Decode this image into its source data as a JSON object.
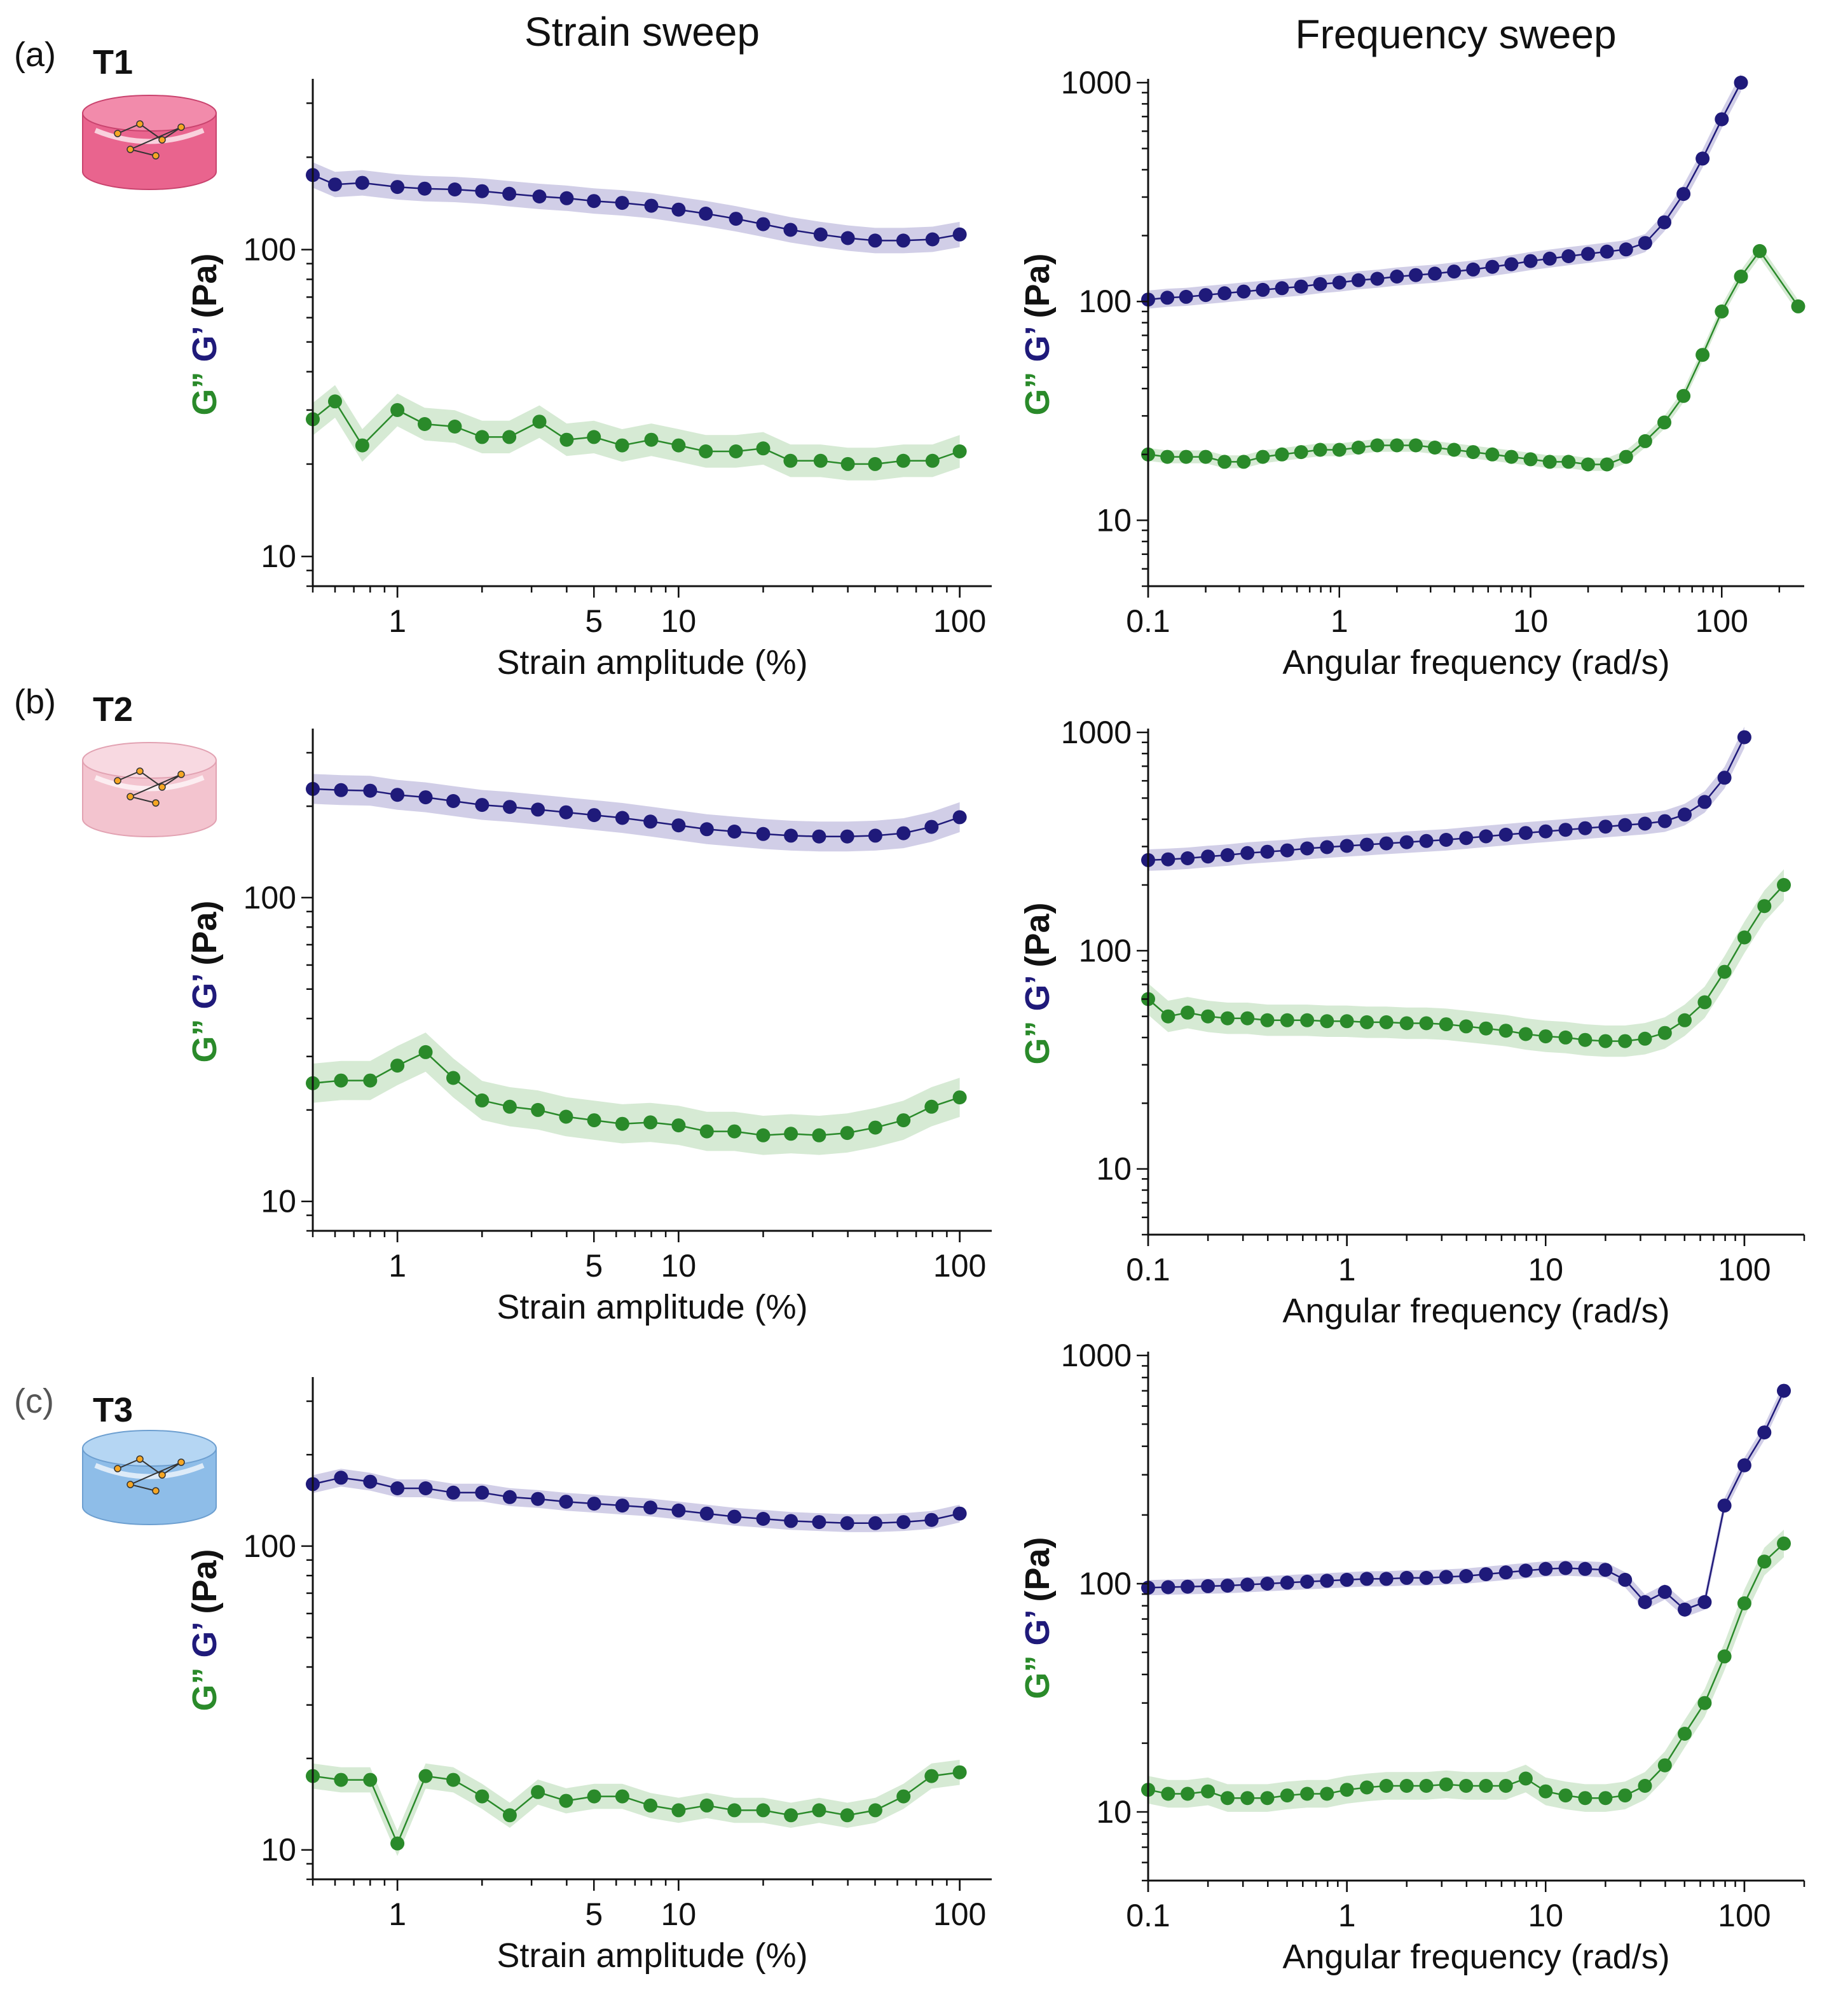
{
  "figure": {
    "col_titles": [
      "Strain sweep",
      "Frequency sweep"
    ],
    "colors": {
      "gprime": "#1f1a7a",
      "gprime_band": "#c9c6e3",
      "gdouble": "#2a8a2a",
      "gdouble_band": "#cfe6cc",
      "text": "#111111",
      "label_c": "#555555"
    },
    "icons": [
      "pink-hydrogel-cylinder-icon",
      "light-pink-hydrogel-cylinder-icon",
      "blue-hydrogel-cylinder-icon"
    ],
    "icon_colors": [
      {
        "body": "#e9648e",
        "top": "#f28bab",
        "dark": "#c9436e"
      },
      {
        "body": "#f3c4cf",
        "top": "#f8d9e1",
        "dark": "#e2a2b2"
      },
      {
        "body": "#8ebde8",
        "top": "#b5d6f3",
        "dark": "#6d9fd0"
      }
    ]
  },
  "chart_data": [
    {
      "type": "line",
      "panel": "(a)",
      "sample": "T1",
      "title": "Strain sweep",
      "xlabel": "Strain amplitude (%)",
      "ylabel_parts": [
        "G”",
        "G’",
        "(Pa)"
      ],
      "xscale": "log",
      "yscale": "log",
      "xlim": [
        0.5,
        130
      ],
      "ylim": [
        8,
        350
      ],
      "xticks": [
        1,
        5,
        10,
        100
      ],
      "yticks": [
        10,
        100
      ],
      "series": [
        {
          "name": "G’",
          "x": [
            0.5,
            0.6,
            0.75,
            1,
            1.25,
            1.6,
            2,
            2.5,
            3.2,
            4,
            5,
            6.3,
            8,
            10,
            12.5,
            16,
            20,
            25,
            32,
            40,
            50,
            63,
            80,
            100
          ],
          "y": [
            175,
            163,
            165,
            160,
            158,
            157,
            155,
            152,
            149,
            147,
            144,
            142,
            139,
            135,
            131,
            126,
            121,
            116,
            112,
            109,
            107,
            107,
            108,
            112
          ],
          "band": 0.1
        },
        {
          "name": "G”",
          "x": [
            0.5,
            0.6,
            0.75,
            1,
            1.25,
            1.6,
            2,
            2.5,
            3.2,
            4,
            5,
            6.3,
            8,
            10,
            12.5,
            16,
            20,
            25,
            32,
            40,
            50,
            63,
            80,
            100
          ],
          "y": [
            28,
            32,
            23,
            30,
            27,
            26.5,
            24.5,
            24.5,
            27.5,
            24,
            24.5,
            23,
            24,
            23,
            22,
            22,
            22.5,
            20.5,
            20.5,
            20,
            20,
            20.5,
            20.5,
            22
          ],
          "band": 0.13
        }
      ]
    },
    {
      "type": "line",
      "panel": "(a)",
      "sample": "T1",
      "title": "Frequency sweep",
      "xlabel": "Angular frequency (rad/s)",
      "ylabel_parts": [
        "G”",
        "G’",
        "(Pa)"
      ],
      "xscale": "log",
      "yscale": "log",
      "xlim": [
        0.1,
        270
      ],
      "ylim": [
        5,
        1000
      ],
      "xticks": [
        0.1,
        1,
        10,
        100
      ],
      "yticks": [
        10,
        100,
        1000
      ],
      "series": [
        {
          "name": "G’",
          "x": [
            0.1,
            0.126,
            0.158,
            0.2,
            0.251,
            0.316,
            0.398,
            0.501,
            0.631,
            0.794,
            1,
            1.26,
            1.58,
            2,
            2.51,
            3.16,
            3.98,
            5.01,
            6.31,
            7.94,
            10,
            12.6,
            15.8,
            20,
            25.1,
            31.6,
            39.8,
            50.1,
            63.1,
            79.4,
            100,
            126
          ],
          "y": [
            102,
            104,
            105,
            107,
            109,
            111,
            113,
            115,
            117,
            120,
            122,
            125,
            127,
            130,
            132,
            134,
            137,
            140,
            144,
            148,
            153,
            157,
            161,
            165,
            169,
            173,
            185,
            230,
            310,
            450,
            680,
            1000
          ],
          "band": 0.1
        },
        {
          "name": "G”",
          "x": [
            0.1,
            0.126,
            0.158,
            0.2,
            0.251,
            0.316,
            0.398,
            0.501,
            0.631,
            0.794,
            1,
            1.26,
            1.58,
            2,
            2.51,
            3.16,
            3.98,
            5.01,
            6.31,
            7.94,
            10,
            12.6,
            15.8,
            20,
            25.1,
            31.6,
            39.8,
            50.1,
            63.1,
            79.4,
            100,
            126,
            158,
            251
          ],
          "y": [
            20,
            19.5,
            19.5,
            19.5,
            18.5,
            18.5,
            19.5,
            20,
            20.5,
            21,
            21,
            21.5,
            22,
            22,
            22,
            21.5,
            21,
            20.5,
            20,
            19.5,
            19,
            18.5,
            18.5,
            18,
            18,
            19.5,
            23,
            28,
            37,
            57,
            90,
            130,
            170,
            95
          ],
          "band": 0.07
        }
      ]
    },
    {
      "type": "line",
      "panel": "(b)",
      "sample": "T2",
      "title": "Strain sweep",
      "xlabel": "Strain amplitude (%)",
      "ylabel_parts": [
        "G”",
        "G’",
        "(Pa)"
      ],
      "xscale": "log",
      "yscale": "log",
      "xlim": [
        0.5,
        130
      ],
      "ylim": [
        8,
        350
      ],
      "xticks": [
        1,
        5,
        10,
        100
      ],
      "yticks": [
        10,
        100
      ],
      "series": [
        {
          "name": "G’",
          "x": [
            0.5,
            0.63,
            0.8,
            1,
            1.26,
            1.58,
            2,
            2.51,
            3.16,
            3.98,
            5.01,
            6.31,
            7.94,
            10,
            12.6,
            15.8,
            20,
            25.1,
            31.6,
            39.8,
            50.1,
            63.1,
            79.4,
            100
          ],
          "y": [
            228,
            226,
            225,
            218,
            214,
            208,
            202,
            199,
            195,
            191,
            187,
            183,
            178,
            173,
            168,
            165,
            162,
            160,
            159,
            159,
            160,
            163,
            171,
            184
          ],
          "band": 0.12
        },
        {
          "name": "G”",
          "x": [
            0.5,
            0.63,
            0.8,
            1,
            1.26,
            1.58,
            2,
            2.51,
            3.16,
            3.98,
            5.01,
            6.31,
            7.94,
            10,
            12.6,
            15.8,
            20,
            25.1,
            31.6,
            39.8,
            50.1,
            63.1,
            79.4,
            100
          ],
          "y": [
            24.5,
            25,
            25,
            28,
            31,
            25.5,
            21.5,
            20.5,
            20,
            19,
            18.5,
            18,
            18.2,
            17.8,
            17,
            17,
            16.5,
            16.7,
            16.5,
            16.8,
            17.5,
            18.5,
            20.5,
            22
          ],
          "band": 0.16
        }
      ]
    },
    {
      "type": "line",
      "panel": "(b)",
      "sample": "T2",
      "title": "Frequency sweep",
      "xlabel": "Angular frequency (rad/s)",
      "ylabel_parts": [
        "G”",
        "G’",
        "(Pa)"
      ],
      "xscale": "log",
      "yscale": "log",
      "xlim": [
        0.1,
        200
      ],
      "ylim": [
        5,
        1000
      ],
      "xticks": [
        0.1,
        1,
        10,
        100
      ],
      "yticks": [
        10,
        100,
        1000
      ],
      "series": [
        {
          "name": "G’",
          "x": [
            0.1,
            0.126,
            0.158,
            0.2,
            0.251,
            0.316,
            0.398,
            0.501,
            0.631,
            0.794,
            1,
            1.26,
            1.58,
            2,
            2.51,
            3.16,
            3.98,
            5.01,
            6.31,
            7.94,
            10,
            12.6,
            15.8,
            20,
            25.1,
            31.6,
            39.8,
            50.1,
            63.1,
            79.4,
            100
          ],
          "y": [
            260,
            262,
            265,
            270,
            274,
            280,
            284,
            288,
            294,
            298,
            302,
            306,
            310,
            314,
            318,
            322,
            328,
            334,
            340,
            346,
            352,
            358,
            364,
            370,
            376,
            382,
            392,
            420,
            480,
            620,
            950
          ],
          "band": 0.12
        },
        {
          "name": "G”",
          "x": [
            0.1,
            0.126,
            0.158,
            0.2,
            0.251,
            0.316,
            0.398,
            0.501,
            0.631,
            0.794,
            1,
            1.26,
            1.58,
            2,
            2.51,
            3.16,
            3.98,
            5.01,
            6.31,
            7.94,
            10,
            12.6,
            15.8,
            20,
            25.1,
            31.6,
            39.8,
            50.1,
            63.1,
            79.4,
            100,
            126,
            158
          ],
          "y": [
            60,
            50,
            52,
            50,
            49,
            49,
            48,
            48,
            48,
            47.5,
            47.5,
            47,
            47,
            46.5,
            46.5,
            46,
            45,
            44,
            43,
            41.5,
            40.5,
            40,
            39,
            38.5,
            38.5,
            39.5,
            42,
            48,
            58,
            80,
            115,
            160,
            200
          ],
          "band": 0.18
        }
      ]
    },
    {
      "type": "line",
      "panel": "(c)",
      "sample": "T3",
      "title": "Strain sweep",
      "xlabel": "Strain amplitude (%)",
      "ylabel_parts": [
        "G”",
        "G’",
        "(Pa)"
      ],
      "xscale": "log",
      "yscale": "log",
      "xlim": [
        0.5,
        130
      ],
      "ylim": [
        8,
        350
      ],
      "xticks": [
        1,
        5,
        10,
        100
      ],
      "yticks": [
        10,
        100
      ],
      "series": [
        {
          "name": "G’",
          "x": [
            0.5,
            0.63,
            0.8,
            1,
            1.26,
            1.58,
            2,
            2.51,
            3.16,
            3.98,
            5.01,
            6.31,
            7.94,
            10,
            12.6,
            15.8,
            20,
            25.1,
            31.6,
            39.8,
            50.1,
            63.1,
            79.4,
            100
          ],
          "y": [
            160,
            168,
            163,
            155,
            155,
            150,
            150,
            145,
            143,
            140,
            138,
            136,
            134,
            131,
            128,
            125,
            123,
            121,
            120,
            119,
            119,
            120,
            122,
            128
          ],
          "band": 0.07
        },
        {
          "name": "G”",
          "x": [
            0.5,
            0.63,
            0.8,
            1,
            1.26,
            1.58,
            2,
            2.51,
            3.16,
            3.98,
            5.01,
            6.31,
            7.94,
            10,
            12.6,
            15.8,
            20,
            25.1,
            31.6,
            39.8,
            50.1,
            63.1,
            79.4,
            100
          ],
          "y": [
            17.5,
            17,
            17,
            10.5,
            17.5,
            17,
            15,
            13,
            15.5,
            14.5,
            15,
            15,
            14,
            13.5,
            14,
            13.5,
            13.5,
            13,
            13.5,
            13,
            13.5,
            15,
            17.5,
            18
          ],
          "band": 0.1
        }
      ]
    },
    {
      "type": "line",
      "panel": "(c)",
      "sample": "T3",
      "title": "Frequency sweep",
      "xlabel": "Angular frequency (rad/s)",
      "ylabel_parts": [
        "G”",
        "G’",
        "(Pa)"
      ],
      "xscale": "log",
      "yscale": "log",
      "xlim": [
        0.1,
        200
      ],
      "ylim": [
        5,
        1000
      ],
      "xticks": [
        0.1,
        1,
        10,
        100
      ],
      "yticks": [
        10,
        100,
        1000
      ],
      "series": [
        {
          "name": "G’",
          "x": [
            0.1,
            0.126,
            0.158,
            0.2,
            0.251,
            0.316,
            0.398,
            0.501,
            0.631,
            0.794,
            1,
            1.26,
            1.58,
            2,
            2.51,
            3.16,
            3.98,
            5.01,
            6.31,
            7.94,
            10,
            12.6,
            15.8,
            20,
            25.1,
            31.6,
            39.8,
            50.1,
            63.1,
            79.4,
            100,
            126,
            158
          ],
          "y": [
            96,
            96.5,
            97,
            97.5,
            98,
            99,
            100,
            101,
            102,
            103,
            104,
            105,
            105,
            106,
            106,
            107,
            108,
            110,
            112,
            114,
            116,
            117,
            116,
            115,
            104,
            83,
            92,
            77,
            83,
            220,
            330,
            460,
            700
          ],
          "band": 0.08
        },
        {
          "name": "G”",
          "x": [
            0.1,
            0.126,
            0.158,
            0.2,
            0.251,
            0.316,
            0.398,
            0.501,
            0.631,
            0.794,
            1,
            1.26,
            1.58,
            2,
            2.51,
            3.16,
            3.98,
            5.01,
            6.31,
            7.94,
            10,
            12.6,
            15.8,
            20,
            25.1,
            31.6,
            39.8,
            50.1,
            63.1,
            79.4,
            100,
            126,
            158
          ],
          "y": [
            12.5,
            12,
            12,
            12.3,
            11.5,
            11.5,
            11.5,
            11.8,
            12,
            12,
            12.5,
            12.8,
            13,
            13,
            13,
            13.2,
            13,
            13,
            13,
            14,
            12.3,
            11.8,
            11.5,
            11.5,
            11.8,
            13,
            16,
            22,
            30,
            48,
            82,
            125,
            150
          ],
          "band": 0.15
        }
      ]
    }
  ]
}
